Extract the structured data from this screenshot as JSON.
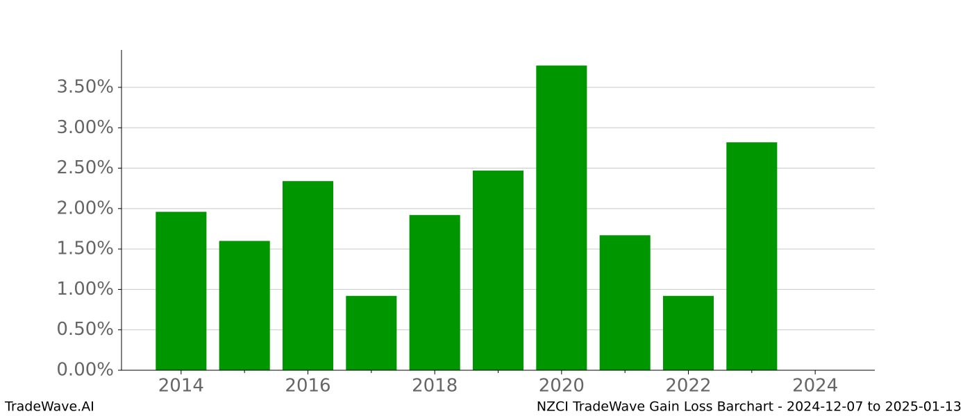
{
  "chart_data": {
    "type": "bar",
    "title": "NZCI TradeWave Gain Loss Barchart - 2024-12-07 to 2025-01-13",
    "watermark": "TradeWave.AI",
    "x": [
      2014,
      2015,
      2016,
      2017,
      2018,
      2019,
      2020,
      2021,
      2022,
      2023,
      2024
    ],
    "values": [
      1.96,
      1.6,
      2.34,
      0.92,
      1.92,
      2.47,
      3.77,
      1.67,
      0.92,
      2.82,
      0
    ],
    "color": "#009600",
    "xlim": [
      2013.06,
      2024.94
    ],
    "xticks": [
      2014,
      2016,
      2018,
      2020,
      2022,
      2024
    ],
    "xminor_ticks": [
      2015,
      2017,
      2019,
      2021,
      2023
    ],
    "ylim": [
      0,
      3.963
    ],
    "yticks": [
      {
        "value": 0,
        "label": "0.00%"
      },
      {
        "value": 0.5,
        "label": "0.50%"
      },
      {
        "value": 1,
        "label": "1.00%"
      },
      {
        "value": 1.5,
        "label": "1.50%"
      },
      {
        "value": 2,
        "label": "2.00%"
      },
      {
        "value": 2.5,
        "label": "2.50%"
      },
      {
        "value": 3,
        "label": "3.00%"
      },
      {
        "value": 3.5,
        "label": "3.50%"
      }
    ],
    "grid": true
  }
}
